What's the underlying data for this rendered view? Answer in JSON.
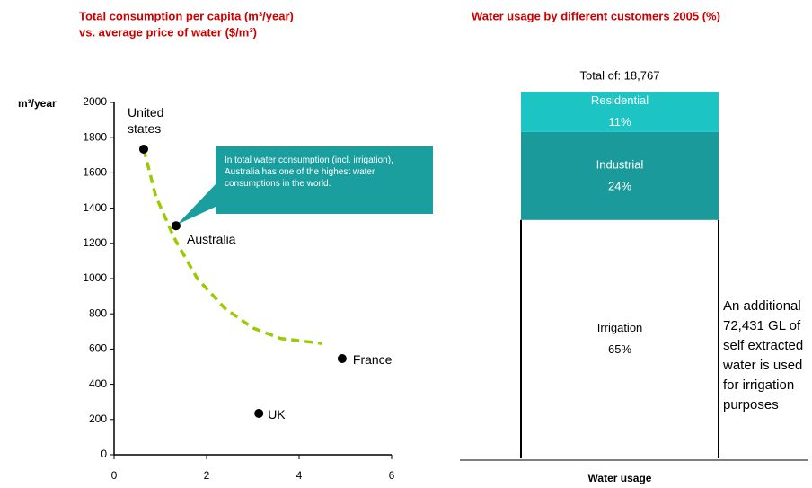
{
  "chart_data": [
    {
      "type": "scatter",
      "title": "Total consumption per capita (m³/year)",
      "subtitle": "vs. average price of water ($/m³)",
      "y_label": "m³/year",
      "x": [
        0.64,
        1.34,
        4.93,
        3.13
      ],
      "values": [
        1735,
        1300,
        546,
        235
      ],
      "labels": [
        "United states",
        "Australia",
        "France",
        "UK"
      ],
      "color": "#000000",
      "xlim": [
        0,
        6
      ],
      "xticks": [
        0,
        2,
        4,
        6
      ],
      "ylim": [
        0,
        2000
      ],
      "yticks": [
        0,
        200,
        400,
        600,
        800,
        1000,
        1200,
        1400,
        1600,
        1800,
        2000
      ],
      "annotation": "In total water consumption (incl. irrigation), Australia has one of the highest water consumptions in the world.",
      "trend": {
        "x": [
          0.64,
          0.9,
          1.3,
          1.8,
          2.4,
          3.0,
          3.6,
          4.5
        ],
        "values": [
          1735,
          1470,
          1230,
          1000,
          830,
          720,
          660,
          632
        ],
        "color": "#99cc00"
      }
    },
    {
      "type": "stacked_bar",
      "title": "Water usage by different customers 2005 (%)",
      "subtitle": "Total of: 18,767",
      "categories": [
        "Water usage"
      ],
      "ylim": [
        0,
        100
      ],
      "series": [
        {
          "name": "Irrigation",
          "color": "#ffffff",
          "values": [
            65
          ],
          "value_labels": [
            "65%"
          ]
        },
        {
          "name": "Industrial",
          "color": "#1a9a9a",
          "values": [
            24
          ],
          "value_labels": [
            "24%"
          ]
        },
        {
          "name": "Residential",
          "color": "#1cc4c4",
          "values": [
            11
          ],
          "value_labels": [
            "11%"
          ]
        }
      ],
      "note": "An additional 72,431 GL of self extracted water is used for irrigation purposes"
    }
  ]
}
